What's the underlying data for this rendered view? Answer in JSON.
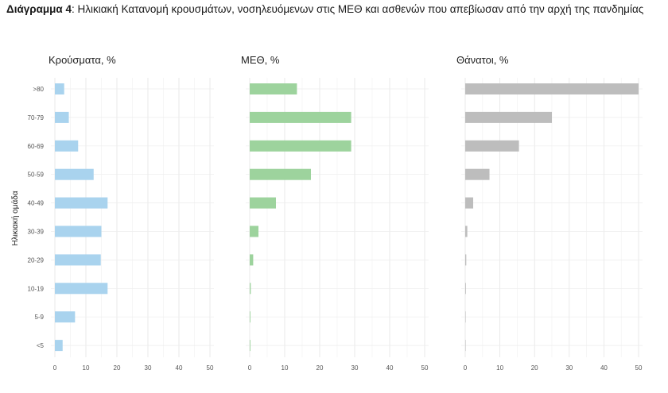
{
  "caption": {
    "label": "Διάγραμμα 4",
    "text": ": Ηλικιακή Κατανομή κρουσμάτων, νοσηλευόμενων στις ΜΕΘ και ασθενών που απεβίωσαν από την αρχή της πανδημίας"
  },
  "chart_data": {
    "type": "bar",
    "orientation": "horizontal",
    "ylabel": "Ηλικιακή ομάδα",
    "categories": [
      ">80",
      "70-79",
      "60-69",
      "50-59",
      "40-49",
      "30-39",
      "20-29",
      "10-19",
      "5-9",
      "<5"
    ],
    "xlim": [
      0,
      50
    ],
    "xticks": [
      "0",
      "10",
      "20",
      "30",
      "40",
      "50"
    ],
    "grid": true,
    "panels": [
      {
        "title": "Κρούσματα, %",
        "color": "#a9d3ee",
        "values": [
          3.0,
          4.5,
          7.5,
          12.5,
          17.0,
          15.0,
          14.8,
          17.0,
          6.5,
          2.5
        ]
      },
      {
        "title": "ΜΕΘ, %",
        "color": "#9dd39d",
        "values": [
          13.5,
          29.0,
          29.0,
          17.5,
          7.5,
          2.5,
          1.0,
          0.3,
          0.2,
          0.2
        ]
      },
      {
        "title": "Θάνατοι, %",
        "color": "#bdbdbd",
        "values": [
          50.0,
          25.0,
          15.5,
          7.0,
          2.3,
          0.6,
          0.3,
          0.2,
          0.1,
          0.1
        ]
      }
    ]
  }
}
